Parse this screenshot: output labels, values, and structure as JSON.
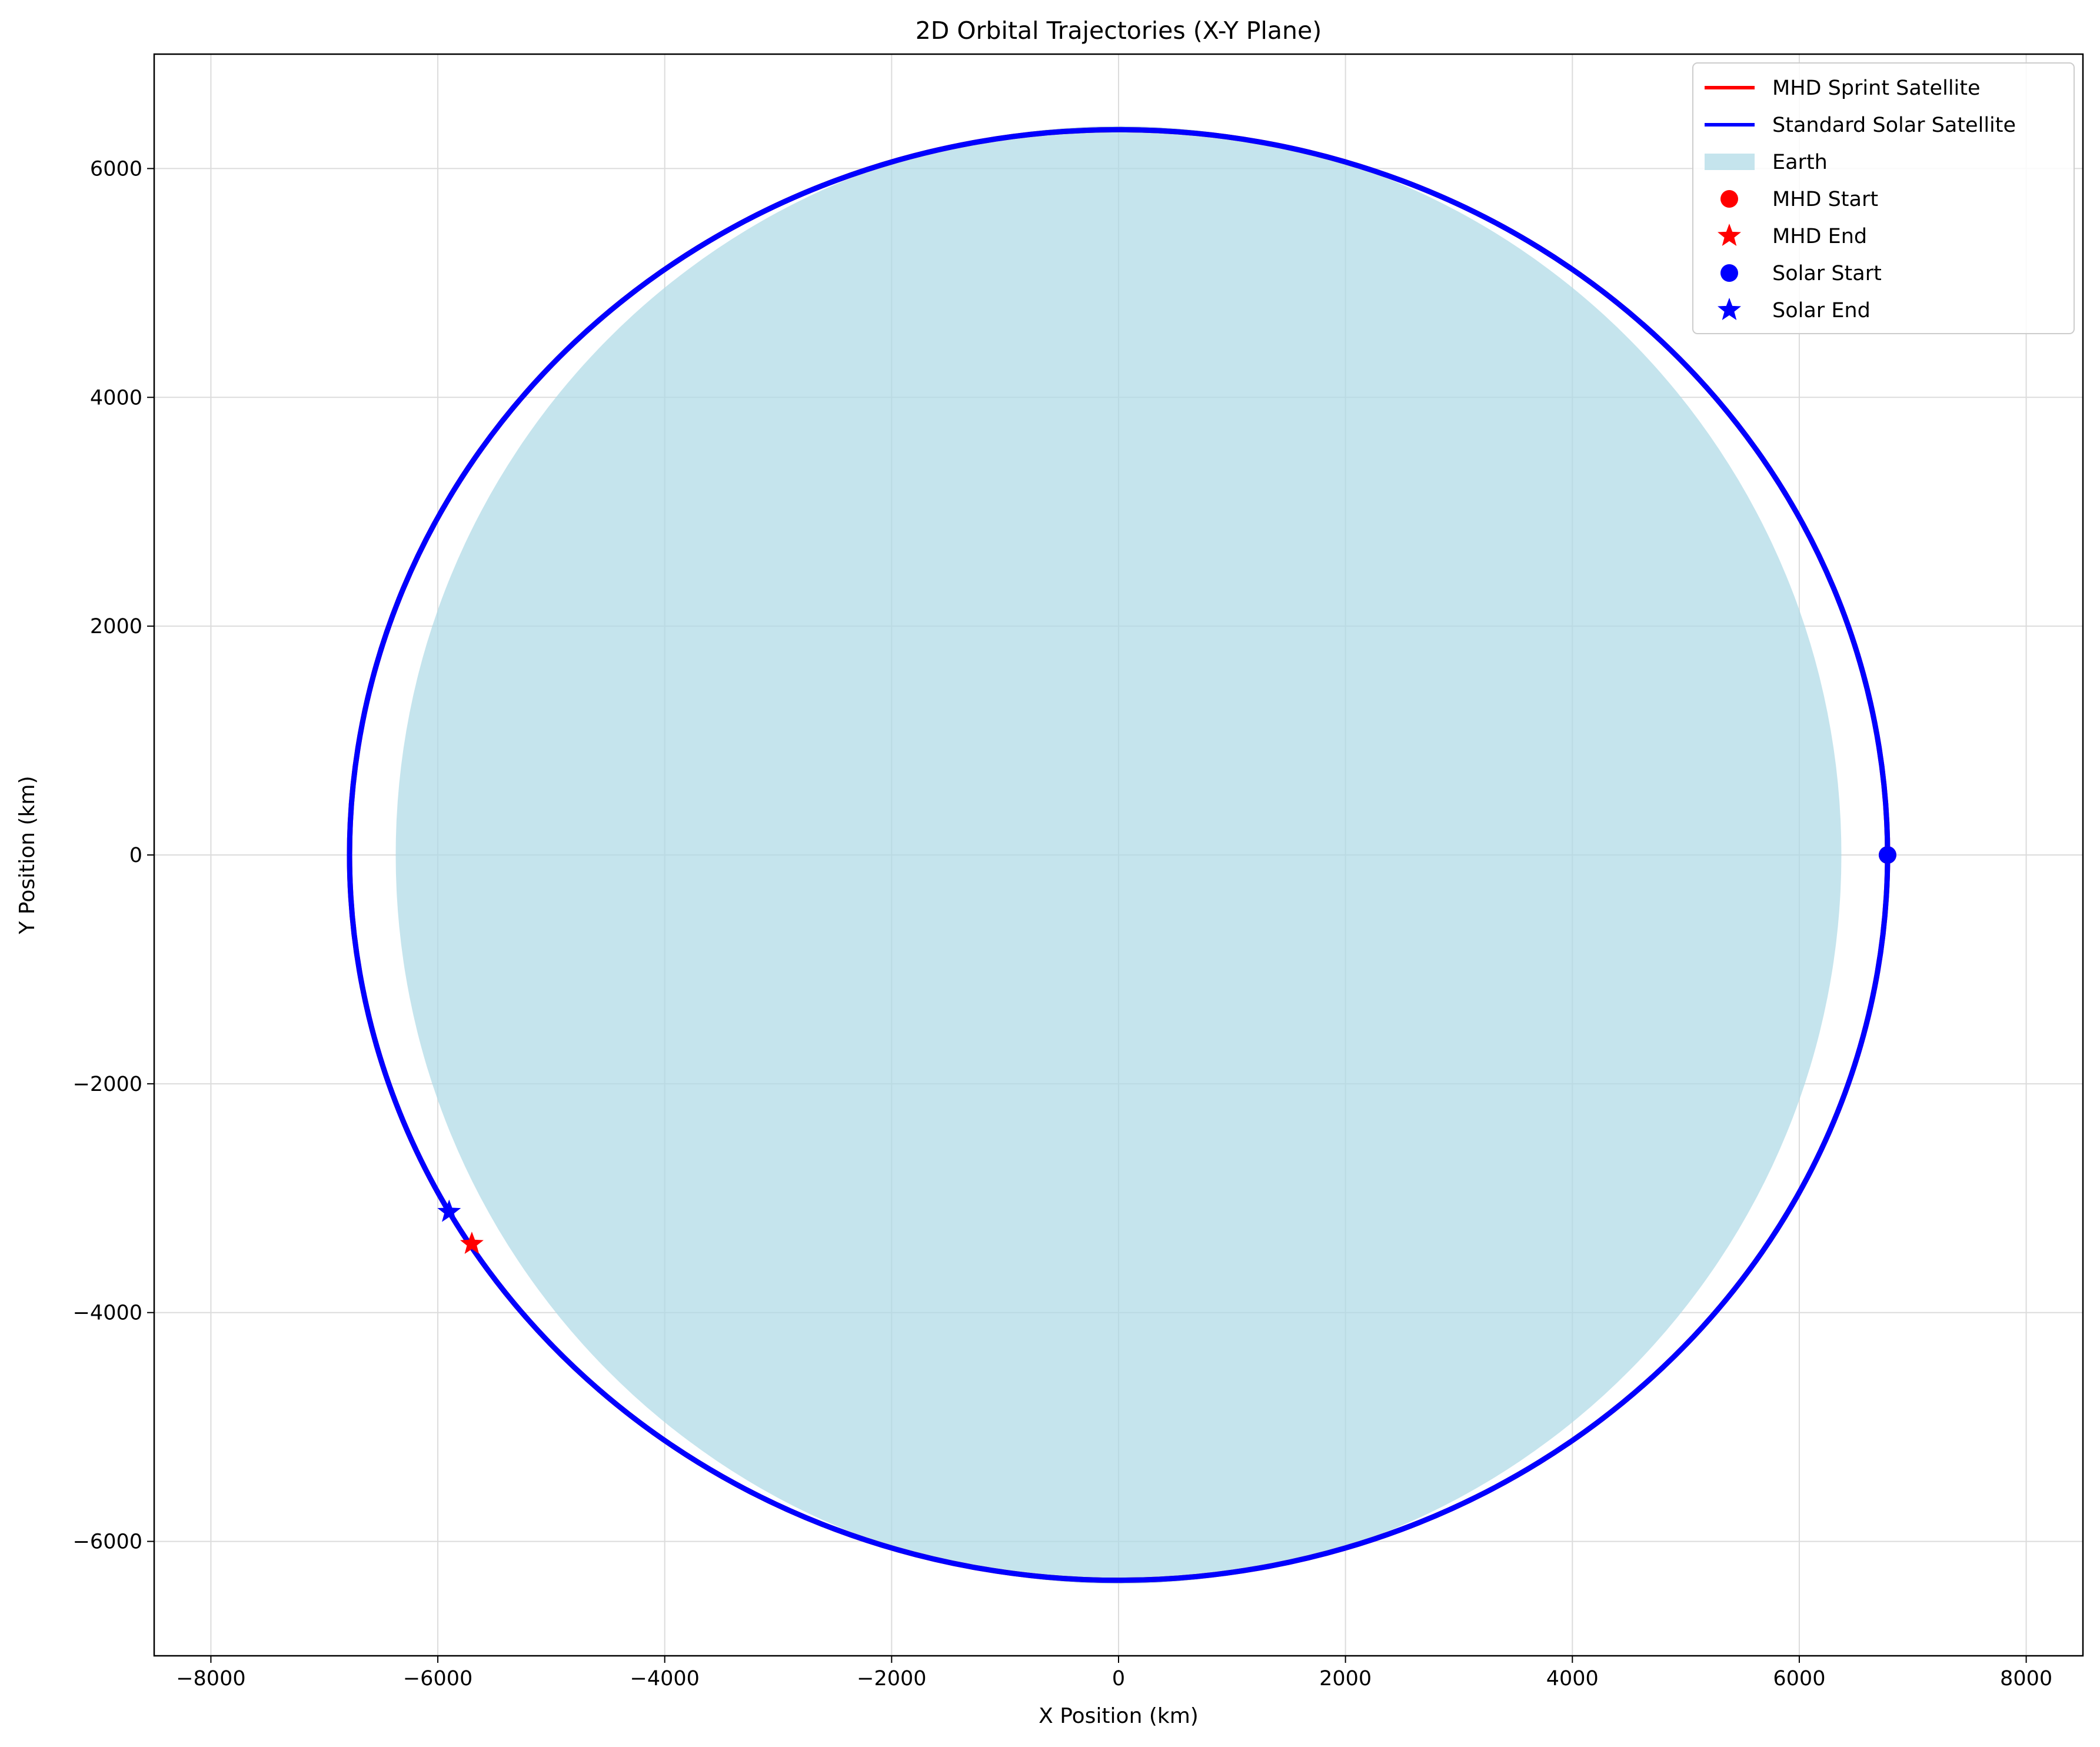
{
  "chart_data": {
    "type": "line",
    "title": "2D Orbital Trajectories (X-Y Plane)",
    "xlabel": "X Position (km)",
    "ylabel": "Y Position (km)",
    "xlim": [
      -8500,
      8500
    ],
    "ylim": [
      -7000,
      7000
    ],
    "xticks": [
      -8000,
      -6000,
      -4000,
      -2000,
      0,
      2000,
      4000,
      6000,
      8000
    ],
    "yticks": [
      -6000,
      -4000,
      -2000,
      0,
      2000,
      4000,
      6000
    ],
    "xtick_labels": [
      "−8000",
      "−6000",
      "−4000",
      "−2000",
      "0",
      "2000",
      "4000",
      "6000",
      "8000"
    ],
    "ytick_labels": [
      "−6000",
      "−4000",
      "−2000",
      "0",
      "2000",
      "4000",
      "6000"
    ],
    "grid": true,
    "legend_position": "top-right",
    "earth": {
      "label": "Earth",
      "radius_km": 6371,
      "color": "#add8e6"
    },
    "series": [
      {
        "name": "MHD Sprint Satellite",
        "color": "#ff0000",
        "orbit": {
          "semi_major_km": 6778,
          "semi_minor_km": 6340,
          "center_x_km": 0,
          "center_y_km": 0
        },
        "start": {
          "x": 6778,
          "y": 0
        },
        "end": {
          "x": -5700,
          "y": -3400
        }
      },
      {
        "name": "Standard Solar Satellite",
        "color": "#0000ff",
        "orbit": {
          "semi_major_km": 6778,
          "semi_minor_km": 6340,
          "center_x_km": 0,
          "center_y_km": 0
        },
        "start": {
          "x": 6778,
          "y": 0
        },
        "end": {
          "x": -5900,
          "y": -3120
        }
      }
    ],
    "legend": [
      {
        "label": "MHD Sprint Satellite",
        "kind": "line",
        "color": "#ff0000"
      },
      {
        "label": "Standard Solar Satellite",
        "kind": "line",
        "color": "#0000ff"
      },
      {
        "label": "Earth",
        "kind": "patch",
        "color": "#add8e6"
      },
      {
        "label": "MHD Start",
        "kind": "circle",
        "color": "#ff0000"
      },
      {
        "label": "MHD End",
        "kind": "star",
        "color": "#ff0000"
      },
      {
        "label": "Solar Start",
        "kind": "circle",
        "color": "#0000ff"
      },
      {
        "label": "Solar End",
        "kind": "star",
        "color": "#0000ff"
      }
    ]
  }
}
